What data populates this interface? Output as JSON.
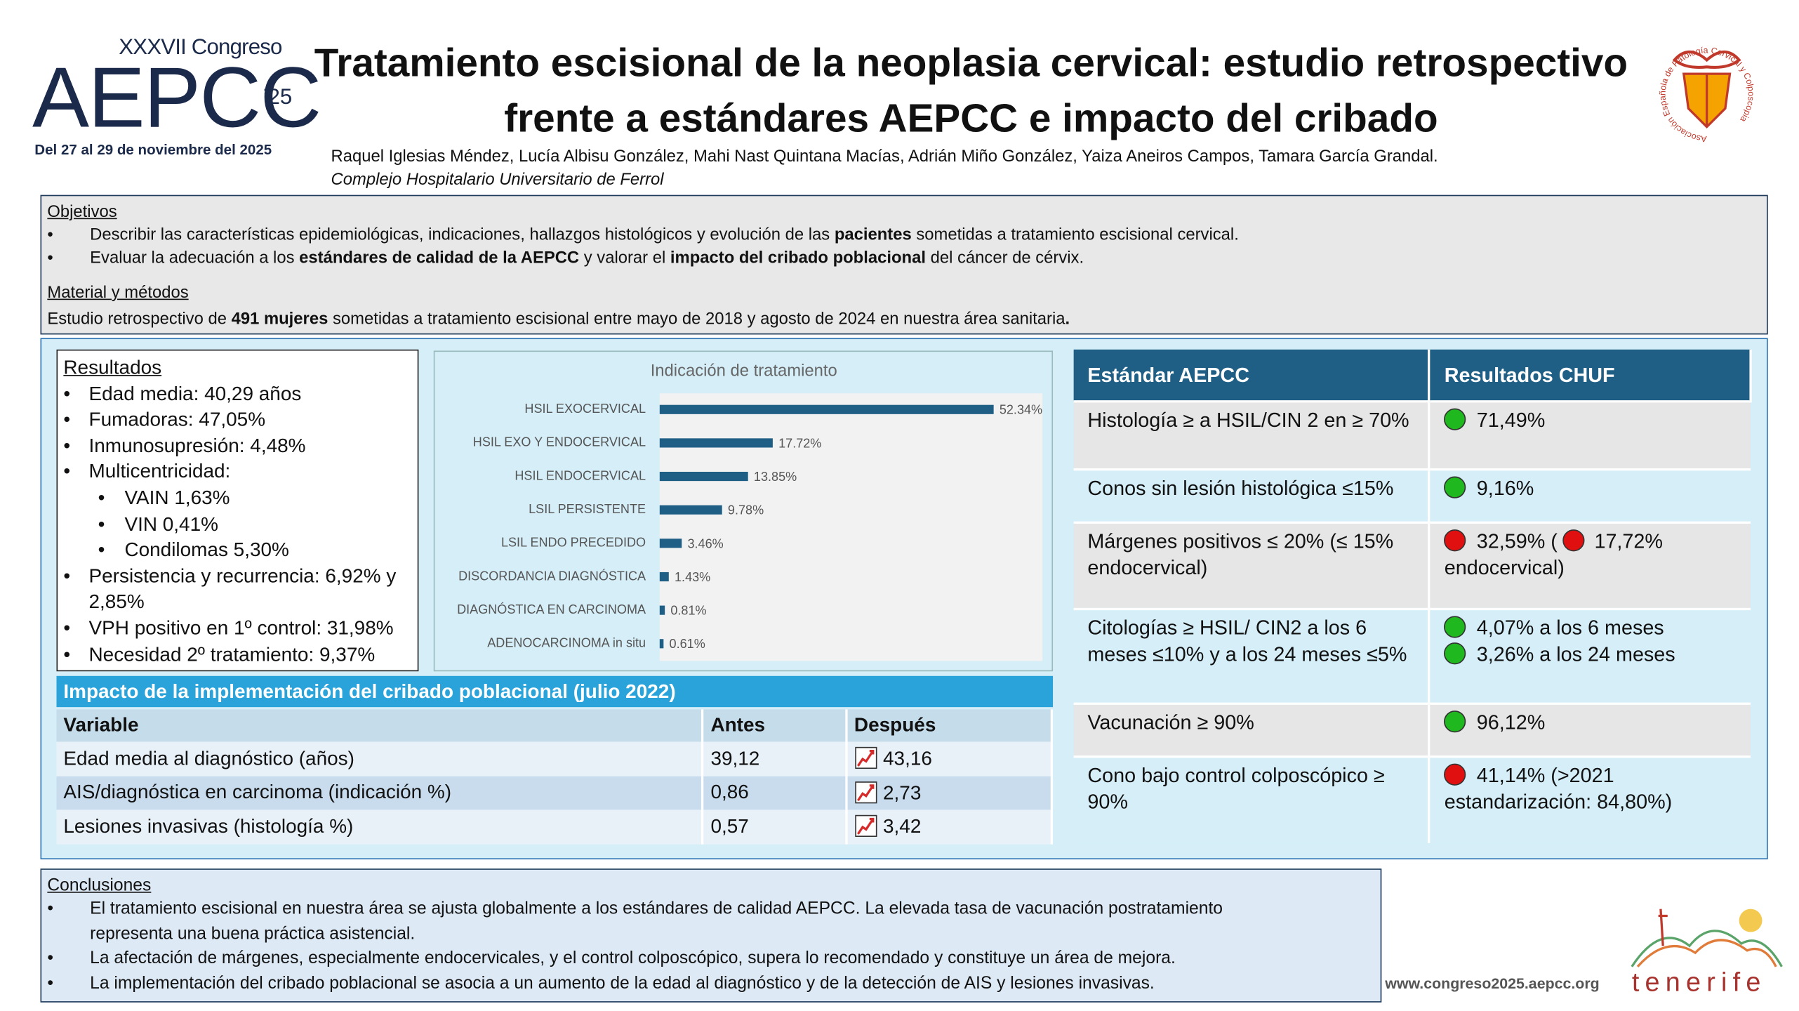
{
  "header": {
    "congress": "XXXVII Congreso",
    "brand": "AEPCC",
    "edition": "’25",
    "dates": "Del 27 al 29 de noviembre del 2025",
    "title": "Tratamiento escisional de la neoplasia cervical: estudio retrospectivo frente a estándares AEPCC e impacto del cribado",
    "authors": "Raquel Iglesias Méndez, Lucía Albisu González, Mahi Nast Quintana Macías, Adrián Miño González, Yaiza Aneiros Campos, Tamara García Grandal.",
    "institution": "Complejo Hospitalario Universitario de Ferrol",
    "society": "Asociación Española de Patología Cervical y Colposcopia"
  },
  "objectives": {
    "heading": "Objetivos",
    "items": [
      [
        {
          "t": "Describir las características epidemiológicas, indicaciones, hallazgos histológicos y evolución de las "
        },
        {
          "t": "pacientes",
          "b": true
        },
        {
          "t": " sometidas a tratamiento escisional cervical."
        }
      ],
      [
        {
          "t": "Evaluar la adecuación a los "
        },
        {
          "t": "estándares de calidad  de la AEPCC",
          "b": true
        },
        {
          "t": " y valorar el "
        },
        {
          "t": "impacto del cribado poblacional",
          "b": true
        },
        {
          "t": " del cáncer de cérvix."
        }
      ]
    ]
  },
  "methods": {
    "heading": "Material y métodos",
    "text": [
      {
        "t": "Estudio retrospectivo de "
      },
      {
        "t": "491 mujeres",
        "b": true
      },
      {
        "t": " sometidas a tratamiento escisional entre mayo de 2018 y agosto de 2024 en nuestra área sanitaria"
      },
      {
        "t": ".",
        "b": true
      }
    ]
  },
  "results": {
    "heading": "Resultados",
    "items": [
      {
        "text": "Edad media: 40,29 años"
      },
      {
        "text": "Fumadoras: 47,05%"
      },
      {
        "text": "Inmunosupresión: 4,48%"
      },
      {
        "text": "Multicentricidad:",
        "sub": [
          "VAIN 1,63%",
          "VIN 0,41%",
          "Condilomas 5,30%"
        ]
      },
      {
        "text": "Persistencia y recurrencia: 6,92% y 2,85%"
      },
      {
        "text": "VPH positivo en 1º control: 31,98%"
      },
      {
        "text": "Necesidad 2º tratamiento: 9,37%"
      }
    ]
  },
  "chart_data": {
    "type": "bar",
    "orientation": "horizontal",
    "title": "Indicación de tratamiento",
    "categories": [
      "HSIL EXOCERVICAL",
      "HSIL EXO Y ENDOCERVICAL",
      "HSIL ENDOCERVICAL",
      "LSIL PERSISTENTE",
      "LSIL ENDO PRECEDIDO",
      "DISCORDANCIA DIAGNÓSTICA",
      "DIAGNÓSTICA EN CARCINOMA",
      "ADENOCARCINOMA in situ"
    ],
    "values": [
      52.34,
      17.72,
      13.85,
      9.78,
      3.46,
      1.43,
      0.81,
      0.61
    ],
    "value_labels": [
      "52.34%",
      "17.72%",
      "13.85%",
      "9.78%",
      "3.46%",
      "1.43%",
      "0.81%",
      "0.61%"
    ],
    "color": "#1f5f85",
    "xlim": [
      0,
      60
    ]
  },
  "impact": {
    "title": "Impacto de la implementación del cribado poblacional (julio 2022)",
    "columns": [
      "Variable",
      "Antes",
      "Después"
    ],
    "rows": [
      [
        "Edad media al diagnóstico (años)",
        "39,12",
        "43,16"
      ],
      [
        "AIS/diagnóstica en carcinoma (indicación %)",
        "0,86",
        "2,73"
      ],
      [
        "Lesiones invasivas (histología %)",
        "0,57",
        "3,42"
      ]
    ]
  },
  "standards": {
    "columns": [
      "Estándar AEPCC",
      "Resultados CHUF"
    ],
    "rows": [
      {
        "standard": "Histología ≥ a HSIL/CIN 2 en ≥ 70%",
        "result": [
          [
            {
              "dot": "#1fb81f",
              "t": "71,49%"
            }
          ]
        ]
      },
      {
        "standard": "Conos sin lesión histológica ≤15%",
        "result": [
          [
            {
              "dot": "#1fb81f",
              "t": "9,16%"
            }
          ]
        ]
      },
      {
        "standard": "Márgenes positivos ≤ 20% (≤ 15% endocervical)",
        "result": [
          [
            {
              "dot": "#e01010",
              "t": "32,59% ("
            },
            {
              "dot": "#e01010",
              "t": "17,72% endocervical)"
            }
          ]
        ]
      },
      {
        "standard": "Citologías ≥ HSIL/ CIN2 a los 6 meses ≤10% y a los 24 meses ≤5%",
        "result": [
          [
            {
              "dot": "#1fb81f",
              "t": "4,07% a los 6 meses"
            }
          ],
          [
            {
              "dot": "#1fb81f",
              "t": "3,26% a los 24 meses"
            }
          ]
        ]
      },
      {
        "standard": "Vacunación ≥ 90%",
        "result": [
          [
            {
              "dot": "#1fb81f",
              "t": "96,12%"
            }
          ]
        ]
      },
      {
        "standard": "Cono bajo control colposcópico ≥ 90%",
        "result": [
          [
            {
              "dot": "#e01010",
              "t": "41,14% (>2021 estandarización: 84,80%)"
            }
          ]
        ]
      }
    ]
  },
  "conclusions": {
    "heading": "Conclusiones",
    "items": [
      "El tratamiento escisional en nuestra área se ajusta globalmente a los estándares de calidad AEPCC. La elevada tasa de vacunación postratamiento representa una buena práctica asistencial.",
      "La afectación de márgenes, especialmente endocervicales, y el control colposcópico, supera lo recomendado y constituye un área de mejora.",
      "La implementación del cribado poblacional se asocia a un aumento de la edad al diagnóstico y de la detección de AIS y lesiones invasivas."
    ]
  },
  "footer": {
    "url": "www.congreso2025.aepcc.org",
    "place": "tenerife"
  }
}
